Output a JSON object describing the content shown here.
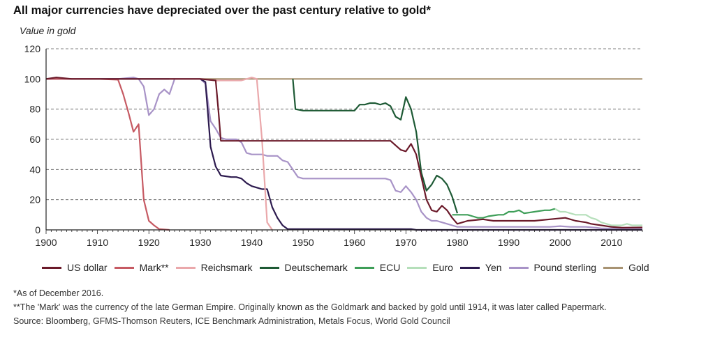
{
  "title": "All major currencies have depreciated over the past century relative to gold*",
  "footnotes": {
    "note1": "*As of December 2016.",
    "note2": "**The 'Mark' was the currency of the late German Empire. Originally known as the Goldmark and backed by gold until 1914, it was later called Papermark.",
    "source": "Source: Bloomberg, GFMS-Thomson Reuters, ICE Benchmark Administration, Metals Focus, World Gold Council"
  },
  "chart_data": {
    "type": "line",
    "title": "All major currencies have depreciated over the past century relative to gold*",
    "xlabel": "",
    "ylabel": "Value in gold",
    "xlim": [
      1900,
      2016
    ],
    "ylim": [
      0,
      120
    ],
    "x_ticks": [
      1900,
      1910,
      1920,
      1930,
      1940,
      1950,
      1960,
      1970,
      1980,
      1990,
      2000,
      2010
    ],
    "y_ticks": [
      0,
      20,
      40,
      60,
      80,
      100,
      120
    ],
    "grid": "horizontal dashed",
    "legend_position": "bottom",
    "series": [
      {
        "name": "US dollar",
        "color": "#6b1a2a",
        "points": [
          [
            1900,
            100
          ],
          [
            1902,
            101
          ],
          [
            1905,
            100
          ],
          [
            1910,
            100
          ],
          [
            1920,
            100
          ],
          [
            1930,
            100
          ],
          [
            1933,
            99
          ],
          [
            1933.5,
            80
          ],
          [
            1934,
            59
          ],
          [
            1950,
            59
          ],
          [
            1960,
            59
          ],
          [
            1967,
            59
          ],
          [
            1968,
            56
          ],
          [
            1969,
            53
          ],
          [
            1970,
            52
          ],
          [
            1971,
            57
          ],
          [
            1972,
            50
          ],
          [
            1973,
            35
          ],
          [
            1974,
            20
          ],
          [
            1975,
            13
          ],
          [
            1976,
            12
          ],
          [
            1977,
            16
          ],
          [
            1978,
            13
          ],
          [
            1979,
            8
          ],
          [
            1980,
            4
          ],
          [
            1981,
            5
          ],
          [
            1982,
            6
          ],
          [
            1985,
            7
          ],
          [
            1987,
            6
          ],
          [
            1990,
            6
          ],
          [
            1995,
            6
          ],
          [
            1998,
            7
          ],
          [
            2001,
            8
          ],
          [
            2003,
            6
          ],
          [
            2005,
            5
          ],
          [
            2006,
            4
          ],
          [
            2008,
            3
          ],
          [
            2010,
            2
          ],
          [
            2012,
            1.5
          ],
          [
            2016,
            1.6
          ]
        ]
      },
      {
        "name": "Mark**",
        "color": "#c65a63",
        "points": [
          [
            1900,
            100
          ],
          [
            1905,
            100
          ],
          [
            1910,
            100
          ],
          [
            1914,
            99.5
          ],
          [
            1915,
            90
          ],
          [
            1916,
            78
          ],
          [
            1917,
            65
          ],
          [
            1918,
            70
          ],
          [
            1919,
            20
          ],
          [
            1920,
            6
          ],
          [
            1921,
            3
          ],
          [
            1922,
            0.5
          ],
          [
            1924,
            0
          ]
        ]
      },
      {
        "name": "Reichsmark",
        "color": "#eaa8ab",
        "points": [
          [
            1924,
            100
          ],
          [
            1930,
            100
          ],
          [
            1933,
            99
          ],
          [
            1935,
            99
          ],
          [
            1938,
            99
          ],
          [
            1940,
            101
          ],
          [
            1941,
            100
          ],
          [
            1942,
            60
          ],
          [
            1943,
            5
          ],
          [
            1944,
            0
          ]
        ]
      },
      {
        "name": "Deutschemark",
        "color": "#1e5a35",
        "points": [
          [
            1948,
            100
          ],
          [
            1948.5,
            80
          ],
          [
            1950,
            79
          ],
          [
            1955,
            79
          ],
          [
            1960,
            79
          ],
          [
            1961,
            83
          ],
          [
            1962,
            83
          ],
          [
            1963,
            84
          ],
          [
            1964,
            84
          ],
          [
            1965,
            83
          ],
          [
            1966,
            84
          ],
          [
            1967,
            82
          ],
          [
            1968,
            75
          ],
          [
            1969,
            73
          ],
          [
            1970,
            88
          ],
          [
            1971,
            80
          ],
          [
            1972,
            65
          ],
          [
            1973,
            38
          ],
          [
            1974,
            26
          ],
          [
            1975,
            30
          ],
          [
            1976,
            36
          ],
          [
            1977,
            34
          ],
          [
            1978,
            30
          ],
          [
            1979,
            22
          ],
          [
            1980,
            11
          ]
        ]
      },
      {
        "name": "ECU",
        "color": "#3e9e58",
        "points": [
          [
            1979,
            10
          ],
          [
            1981,
            10
          ],
          [
            1982,
            10
          ],
          [
            1983,
            9
          ],
          [
            1984,
            8
          ],
          [
            1985,
            8
          ],
          [
            1986,
            9
          ],
          [
            1988,
            10
          ],
          [
            1989,
            10
          ],
          [
            1990,
            12
          ],
          [
            1991,
            12
          ],
          [
            1992,
            13
          ],
          [
            1993,
            11
          ],
          [
            1995,
            12
          ],
          [
            1997,
            13
          ],
          [
            1998,
            13
          ],
          [
            1999,
            14
          ]
        ]
      },
      {
        "name": "Euro",
        "color": "#b5dfba",
        "points": [
          [
            1999,
            14
          ],
          [
            2000,
            12
          ],
          [
            2001,
            12
          ],
          [
            2002,
            11
          ],
          [
            2003,
            10
          ],
          [
            2005,
            10
          ],
          [
            2006,
            8
          ],
          [
            2007,
            7
          ],
          [
            2008,
            5
          ],
          [
            2009,
            4
          ],
          [
            2010,
            3
          ],
          [
            2011,
            3
          ],
          [
            2012,
            3
          ],
          [
            2013,
            4
          ],
          [
            2014,
            3
          ],
          [
            2016,
            3
          ]
        ]
      },
      {
        "name": "Yen",
        "color": "#2c1a4e",
        "points": [
          [
            1900,
            100
          ],
          [
            1905,
            100
          ],
          [
            1910,
            100
          ],
          [
            1915,
            100
          ],
          [
            1918,
            100
          ],
          [
            1920,
            100
          ],
          [
            1925,
            100
          ],
          [
            1930,
            100
          ],
          [
            1931,
            98
          ],
          [
            1932,
            55
          ],
          [
            1933,
            42
          ],
          [
            1934,
            36
          ],
          [
            1936,
            35
          ],
          [
            1937,
            35
          ],
          [
            1938,
            34
          ],
          [
            1939,
            31
          ],
          [
            1940,
            29
          ],
          [
            1941,
            28
          ],
          [
            1942,
            27
          ],
          [
            1943,
            27
          ],
          [
            1944,
            15
          ],
          [
            1945,
            8
          ],
          [
            1946,
            3
          ],
          [
            1947,
            0.5
          ],
          [
            1950,
            0.5
          ],
          [
            1960,
            0.5
          ],
          [
            1970,
            0.5
          ],
          [
            1971,
            0.5
          ],
          [
            1972,
            0
          ],
          [
            1980,
            0
          ],
          [
            2016,
            0
          ]
        ]
      },
      {
        "name": "Pound sterling",
        "color": "#a893c7",
        "points": [
          [
            1900,
            100
          ],
          [
            1910,
            100
          ],
          [
            1914,
            100
          ],
          [
            1917,
            101
          ],
          [
            1918,
            100
          ],
          [
            1919,
            95
          ],
          [
            1920,
            76
          ],
          [
            1921,
            80
          ],
          [
            1922,
            90
          ],
          [
            1923,
            93
          ],
          [
            1924,
            90
          ],
          [
            1925,
            100
          ],
          [
            1930,
            100
          ],
          [
            1931,
            97
          ],
          [
            1932,
            72
          ],
          [
            1933,
            67
          ],
          [
            1934,
            61
          ],
          [
            1935,
            60
          ],
          [
            1936,
            60
          ],
          [
            1937,
            60
          ],
          [
            1938,
            58
          ],
          [
            1939,
            51
          ],
          [
            1940,
            50
          ],
          [
            1942,
            50
          ],
          [
            1943,
            49
          ],
          [
            1945,
            49
          ],
          [
            1946,
            46
          ],
          [
            1947,
            45
          ],
          [
            1949,
            35
          ],
          [
            1950,
            34
          ],
          [
            1955,
            34
          ],
          [
            1960,
            34
          ],
          [
            1966,
            34
          ],
          [
            1967,
            33
          ],
          [
            1968,
            26
          ],
          [
            1969,
            25
          ],
          [
            1970,
            29
          ],
          [
            1971,
            25
          ],
          [
            1972,
            20
          ],
          [
            1973,
            12
          ],
          [
            1974,
            8
          ],
          [
            1975,
            6
          ],
          [
            1976,
            6
          ],
          [
            1977,
            5
          ],
          [
            1978,
            4
          ],
          [
            1979,
            3
          ],
          [
            1980,
            2
          ],
          [
            1985,
            2
          ],
          [
            1990,
            2
          ],
          [
            1995,
            2
          ],
          [
            1998,
            2
          ],
          [
            2000,
            2.5
          ],
          [
            2002,
            2
          ],
          [
            2005,
            2
          ],
          [
            2007,
            1.5
          ],
          [
            2008,
            1
          ],
          [
            2010,
            1
          ],
          [
            2012,
            1
          ],
          [
            2016,
            1
          ]
        ]
      },
      {
        "name": "Gold",
        "color": "#a89373",
        "points": [
          [
            1900,
            100
          ],
          [
            2016,
            100
          ]
        ]
      }
    ]
  }
}
